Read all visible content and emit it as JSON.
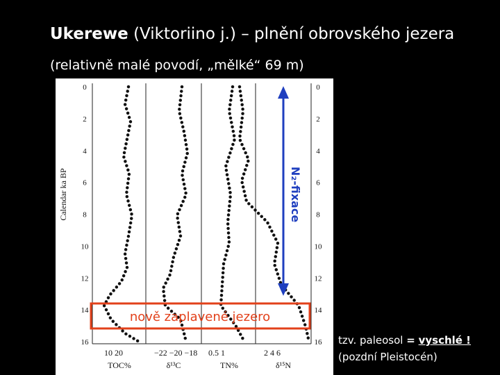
{
  "header": {
    "title_bold": "Ukerewe",
    "title_rest": "(Viktoriino j.) – plnění obrovského jezera",
    "subtitle": "(relativně malé povodí, „mělké“ 69 m)"
  },
  "figure": {
    "y_axis_title": "Calendar ka BP",
    "depth_ticks": [
      0,
      2,
      4,
      6,
      8,
      10,
      12,
      14,
      16
    ],
    "bottom_scales": [
      "10   20",
      "−22 −20 −18",
      "0.5  1",
      "2   4   6"
    ],
    "bottom_labels": [
      "TOC%",
      "δ¹³C",
      "TN%",
      "δ¹⁵N"
    ]
  },
  "annotations": {
    "fixation": "N₂-fixace",
    "new_lake": "nově zaplavené jezero"
  },
  "note": {
    "text": "tzv. paleosol",
    "equals": "=",
    "emphasis": "vyschlé !",
    "period": "(pozdní Pleistocén)"
  }
}
